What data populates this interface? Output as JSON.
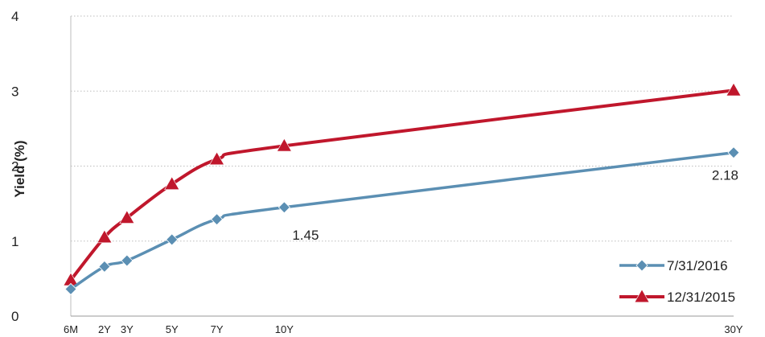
{
  "chart_data": {
    "type": "line",
    "title": "",
    "xlabel": "",
    "ylabel": "Yield (%)",
    "ylim": [
      0,
      4
    ],
    "yticks": [
      "0",
      "1",
      "2",
      "3",
      "4"
    ],
    "grid": true,
    "legend_position": "bottom-right",
    "categories": [
      "6M",
      "2Y",
      "3Y",
      "5Y",
      "7Y",
      "10Y",
      "30Y"
    ],
    "x_years": [
      0.5,
      2,
      3,
      5,
      7,
      10,
      30
    ],
    "series": [
      {
        "name": "7/31/2016",
        "color": "#5b8fb3",
        "marker": "diamond",
        "values": [
          0.36,
          0.66,
          0.74,
          1.02,
          1.29,
          1.45,
          2.18
        ]
      },
      {
        "name": "12/31/2015",
        "color": "#c0172c",
        "marker": "triangle",
        "values": [
          0.48,
          1.05,
          1.31,
          1.76,
          2.09,
          2.27,
          3.01
        ]
      }
    ],
    "annotations": [
      {
        "series": 0,
        "point": 5,
        "text": "1.45"
      },
      {
        "series": 0,
        "point": 6,
        "text": "2.18"
      }
    ]
  }
}
